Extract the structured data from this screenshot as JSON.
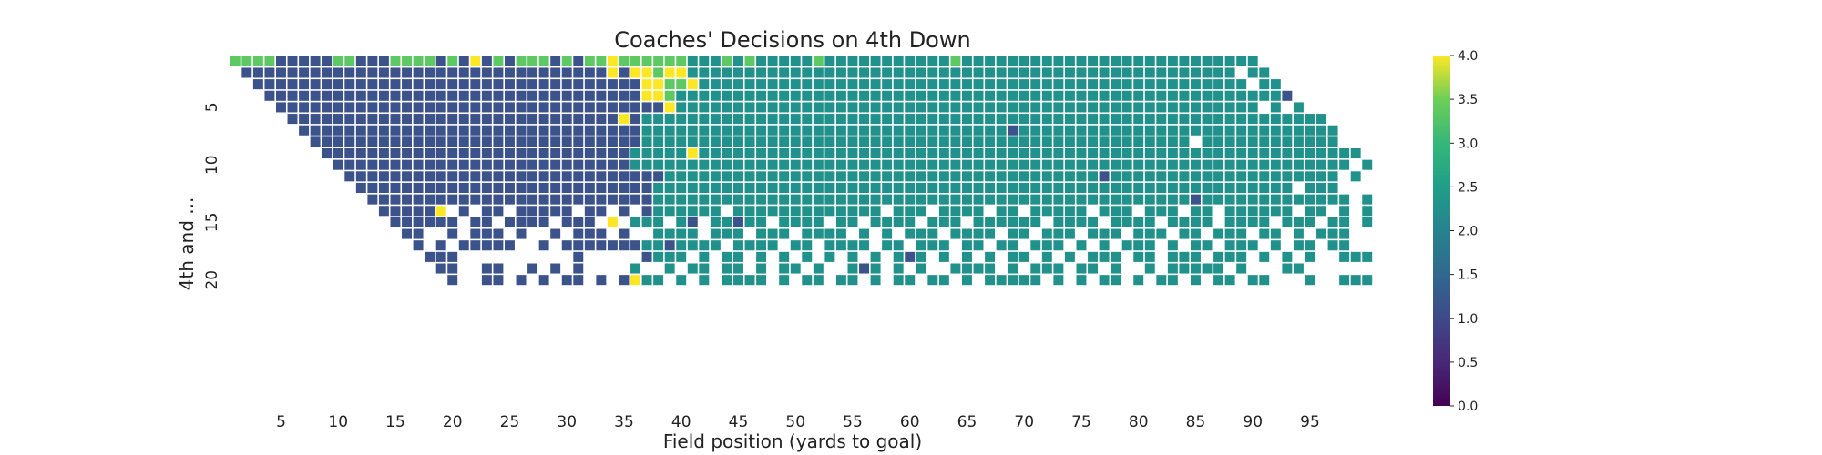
{
  "chart_data": {
    "type": "heatmap",
    "title": "Coaches' Decisions on 4th Down",
    "xlabel": "Field position (yards to goal)",
    "ylabel": "4th and ...",
    "x_range": [
      1,
      99
    ],
    "y_range": [
      1,
      20
    ],
    "x_ticks": [
      5,
      10,
      15,
      20,
      25,
      30,
      35,
      40,
      45,
      50,
      55,
      60,
      65,
      70,
      75,
      80,
      85,
      90,
      95
    ],
    "y_ticks": [
      5,
      10,
      15,
      20
    ],
    "colormap": "viridis",
    "colorbar": {
      "range": [
        0.0,
        4.0
      ],
      "ticks": [
        "0.0",
        "0.5",
        "1.0",
        "1.5",
        "2.0",
        "2.5",
        "3.0",
        "3.5",
        "4.0"
      ]
    },
    "value_colors": {
      "0": "#440154",
      "1": "#3b528b",
      "2": "#21918c",
      "3": "#5ec962",
      "4": "#fde725"
    },
    "rows": [
      {
        "yards": 1,
        "ranges": [
          [
            1,
            4,
            3
          ],
          [
            5,
            9,
            1
          ],
          [
            10,
            11,
            3
          ],
          [
            12,
            14,
            1
          ],
          [
            15,
            18,
            3
          ],
          [
            19,
            19,
            1
          ],
          [
            20,
            20,
            3
          ],
          [
            21,
            21,
            1
          ],
          [
            22,
            22,
            4
          ],
          [
            23,
            23,
            1
          ],
          [
            24,
            24,
            3
          ],
          [
            25,
            25,
            1
          ],
          [
            26,
            28,
            3
          ],
          [
            29,
            29,
            1
          ],
          [
            30,
            30,
            3
          ],
          [
            31,
            31,
            1
          ],
          [
            32,
            33,
            3
          ],
          [
            34,
            34,
            4
          ],
          [
            35,
            40,
            3
          ],
          [
            41,
            43,
            2
          ],
          [
            44,
            44,
            3
          ],
          [
            45,
            45,
            2
          ],
          [
            46,
            46,
            3
          ],
          [
            47,
            51,
            2
          ],
          [
            52,
            52,
            3
          ],
          [
            53,
            63,
            2
          ],
          [
            64,
            64,
            3
          ],
          [
            65,
            90,
            2
          ]
        ]
      },
      {
        "yards": 2,
        "ranges": [
          [
            2,
            33,
            1
          ],
          [
            34,
            34,
            4
          ],
          [
            35,
            35,
            1
          ],
          [
            36,
            37,
            4
          ],
          [
            38,
            38,
            3
          ],
          [
            39,
            40,
            4
          ],
          [
            41,
            88,
            2
          ],
          [
            90,
            91,
            2
          ]
        ]
      },
      {
        "yards": 3,
        "ranges": [
          [
            3,
            36,
            1
          ],
          [
            37,
            38,
            4
          ],
          [
            39,
            40,
            3
          ],
          [
            41,
            41,
            4
          ],
          [
            42,
            89,
            2
          ],
          [
            91,
            92,
            2
          ]
        ]
      },
      {
        "yards": 4,
        "ranges": [
          [
            4,
            36,
            1
          ],
          [
            37,
            38,
            4
          ],
          [
            39,
            39,
            3
          ],
          [
            40,
            92,
            2
          ],
          [
            93,
            93,
            1
          ]
        ]
      },
      {
        "yards": 5,
        "ranges": [
          [
            5,
            38,
            1
          ],
          [
            39,
            39,
            4
          ],
          [
            40,
            90,
            2
          ],
          [
            92,
            92,
            2
          ],
          [
            94,
            94,
            2
          ]
        ]
      },
      {
        "yards": 6,
        "ranges": [
          [
            6,
            34,
            1
          ],
          [
            35,
            35,
            4
          ],
          [
            36,
            36,
            1
          ],
          [
            37,
            96,
            2
          ]
        ]
      },
      {
        "yards": 7,
        "ranges": [
          [
            7,
            36,
            1
          ],
          [
            37,
            68,
            2
          ],
          [
            69,
            69,
            1
          ],
          [
            70,
            97,
            2
          ]
        ]
      },
      {
        "yards": 8,
        "ranges": [
          [
            8,
            36,
            1
          ],
          [
            37,
            84,
            2
          ],
          [
            86,
            97,
            2
          ]
        ]
      },
      {
        "yards": 9,
        "ranges": [
          [
            9,
            35,
            1
          ],
          [
            36,
            40,
            2
          ],
          [
            41,
            41,
            4
          ],
          [
            42,
            99,
            2
          ]
        ]
      },
      {
        "yards": 10,
        "ranges": [
          [
            10,
            35,
            1
          ],
          [
            36,
            98,
            2
          ],
          [
            100,
            100,
            2
          ]
        ]
      },
      {
        "yards": 11,
        "ranges": [
          [
            11,
            38,
            1
          ],
          [
            39,
            76,
            2
          ],
          [
            77,
            77,
            1
          ],
          [
            78,
            97,
            2
          ],
          [
            99,
            99,
            2
          ]
        ]
      },
      {
        "yards": 12,
        "ranges": [
          [
            12,
            37,
            1
          ],
          [
            38,
            93,
            2
          ],
          [
            95,
            97,
            2
          ]
        ]
      },
      {
        "yards": 13,
        "ranges": [
          [
            13,
            37,
            1
          ],
          [
            38,
            84,
            2
          ],
          [
            85,
            85,
            1
          ],
          [
            86,
            98,
            2
          ],
          [
            100,
            100,
            2
          ]
        ]
      },
      {
        "yards": 14,
        "ranges": [
          [
            14,
            18,
            1
          ],
          [
            19,
            19,
            4
          ],
          [
            20,
            37,
            1
          ],
          [
            38,
            96,
            2
          ],
          [
            97,
            97,
            1
          ],
          [
            98,
            98,
            2
          ],
          [
            99,
            99,
            1
          ],
          [
            100,
            100,
            2
          ]
        ]
      },
      {
        "yards": 15,
        "ranges": [
          [
            15,
            33,
            1
          ],
          [
            34,
            34,
            4
          ],
          [
            35,
            40,
            2
          ],
          [
            41,
            41,
            1
          ],
          [
            42,
            44,
            2
          ],
          [
            45,
            45,
            1
          ],
          [
            46,
            100,
            2
          ]
        ]
      },
      {
        "yards": 16,
        "ranges": [
          [
            16,
            35,
            1
          ],
          [
            36,
            98,
            2
          ]
        ]
      },
      {
        "yards": 17,
        "ranges": [
          [
            17,
            36,
            1
          ],
          [
            37,
            38,
            2
          ],
          [
            39,
            39,
            1
          ],
          [
            40,
            98,
            2
          ]
        ]
      },
      {
        "yards": 18,
        "ranges": [
          [
            18,
            37,
            1
          ],
          [
            38,
            59,
            2
          ],
          [
            60,
            60,
            1
          ],
          [
            61,
            100,
            2
          ]
        ]
      },
      {
        "yards": 19,
        "ranges": [
          [
            19,
            31,
            1
          ],
          [
            36,
            55,
            2
          ],
          [
            56,
            56,
            1
          ],
          [
            57,
            94,
            2
          ]
        ]
      },
      {
        "yards": 20,
        "ranges": [
          [
            20,
            35,
            1
          ],
          [
            36,
            36,
            4
          ],
          [
            37,
            100,
            2
          ]
        ]
      }
    ],
    "missing": [
      [
        2,
        89
      ],
      [
        3,
        90
      ],
      [
        5,
        91
      ],
      [
        5,
        93
      ],
      [
        8,
        85
      ],
      [
        10,
        99
      ],
      [
        11,
        98
      ],
      [
        12,
        94
      ],
      [
        13,
        99
      ],
      [
        14,
        20
      ],
      [
        14,
        22
      ],
      [
        14,
        25
      ],
      [
        14,
        31
      ],
      [
        14,
        34
      ],
      [
        14,
        36
      ],
      [
        14,
        44
      ],
      [
        14,
        58
      ],
      [
        14,
        62
      ],
      [
        14,
        67
      ],
      [
        14,
        70
      ],
      [
        14,
        76
      ],
      [
        14,
        80
      ],
      [
        14,
        84
      ],
      [
        14,
        87
      ],
      [
        14,
        94
      ],
      [
        14,
        97
      ],
      [
        14,
        99
      ],
      [
        15,
        21
      ],
      [
        15,
        24
      ],
      [
        15,
        29
      ],
      [
        15,
        33
      ],
      [
        15,
        35
      ],
      [
        15,
        39
      ],
      [
        15,
        42
      ],
      [
        15,
        48
      ],
      [
        15,
        53
      ],
      [
        15,
        56
      ],
      [
        15,
        61
      ],
      [
        15,
        65
      ],
      [
        15,
        72
      ],
      [
        15,
        77
      ],
      [
        15,
        82
      ],
      [
        15,
        87
      ],
      [
        15,
        92
      ],
      [
        15,
        96
      ],
      [
        15,
        99
      ],
      [
        16,
        18
      ],
      [
        16,
        19
      ],
      [
        16,
        21
      ],
      [
        16,
        25
      ],
      [
        16,
        27
      ],
      [
        16,
        28
      ],
      [
        16,
        30
      ],
      [
        16,
        34
      ],
      [
        16,
        36
      ],
      [
        16,
        37
      ],
      [
        16,
        42
      ],
      [
        16,
        46
      ],
      [
        16,
        50
      ],
      [
        16,
        55
      ],
      [
        16,
        57
      ],
      [
        16,
        59
      ],
      [
        16,
        63
      ],
      [
        16,
        68
      ],
      [
        16,
        71
      ],
      [
        16,
        75
      ],
      [
        16,
        79
      ],
      [
        16,
        83
      ],
      [
        16,
        86
      ],
      [
        16,
        90
      ],
      [
        16,
        93
      ],
      [
        16,
        95
      ],
      [
        17,
        18
      ],
      [
        17,
        20
      ],
      [
        17,
        26
      ],
      [
        17,
        27
      ],
      [
        17,
        29
      ],
      [
        17,
        44
      ],
      [
        17,
        49
      ],
      [
        17,
        52
      ],
      [
        17,
        57
      ],
      [
        17,
        60
      ],
      [
        17,
        64
      ],
      [
        17,
        67
      ],
      [
        17,
        70
      ],
      [
        17,
        74
      ],
      [
        17,
        76
      ],
      [
        17,
        78
      ],
      [
        17,
        82
      ],
      [
        17,
        84
      ],
      [
        17,
        87
      ],
      [
        17,
        91
      ],
      [
        17,
        93
      ],
      [
        17,
        96
      ],
      [
        18,
        21
      ],
      [
        18,
        22
      ],
      [
        18,
        23
      ],
      [
        18,
        24
      ],
      [
        18,
        25
      ],
      [
        18,
        26
      ],
      [
        18,
        27
      ],
      [
        18,
        28
      ],
      [
        18,
        29
      ],
      [
        18,
        30
      ],
      [
        18,
        32
      ],
      [
        18,
        33
      ],
      [
        18,
        34
      ],
      [
        18,
        35
      ],
      [
        18,
        36
      ],
      [
        18,
        41
      ],
      [
        18,
        43
      ],
      [
        18,
        46
      ],
      [
        18,
        48
      ],
      [
        18,
        50
      ],
      [
        18,
        52
      ],
      [
        18,
        54
      ],
      [
        18,
        56
      ],
      [
        18,
        58
      ],
      [
        18,
        62
      ],
      [
        18,
        64
      ],
      [
        18,
        66
      ],
      [
        18,
        68
      ],
      [
        18,
        71
      ],
      [
        18,
        73
      ],
      [
        18,
        75
      ],
      [
        18,
        79
      ],
      [
        18,
        82
      ],
      [
        18,
        86
      ],
      [
        18,
        90
      ],
      [
        18,
        92
      ],
      [
        18,
        94
      ],
      [
        18,
        96
      ],
      [
        18,
        97
      ],
      [
        19,
        21
      ],
      [
        19,
        22
      ],
      [
        19,
        25
      ],
      [
        19,
        26
      ],
      [
        19,
        28
      ],
      [
        19,
        30
      ],
      [
        19,
        37
      ],
      [
        19,
        38
      ],
      [
        19,
        40
      ],
      [
        19,
        43
      ],
      [
        19,
        46
      ],
      [
        19,
        48
      ],
      [
        19,
        51
      ],
      [
        19,
        53
      ],
      [
        19,
        54
      ],
      [
        19,
        58
      ],
      [
        19,
        60
      ],
      [
        19,
        62
      ],
      [
        19,
        63
      ],
      [
        19,
        68
      ],
      [
        19,
        70
      ],
      [
        19,
        74
      ],
      [
        19,
        77
      ],
      [
        19,
        79
      ],
      [
        19,
        80
      ],
      [
        19,
        82
      ],
      [
        19,
        88
      ],
      [
        19,
        90
      ],
      [
        19,
        91
      ],
      [
        19,
        92
      ],
      [
        20,
        21
      ],
      [
        20,
        22
      ],
      [
        20,
        25
      ],
      [
        20,
        27
      ],
      [
        20,
        29
      ],
      [
        20,
        32
      ],
      [
        20,
        34
      ],
      [
        20,
        39
      ],
      [
        20,
        41
      ],
      [
        20,
        43
      ],
      [
        20,
        48
      ],
      [
        20,
        50
      ],
      [
        20,
        53
      ],
      [
        20,
        56
      ],
      [
        20,
        58
      ],
      [
        20,
        61
      ],
      [
        20,
        64
      ],
      [
        20,
        66
      ],
      [
        20,
        72
      ],
      [
        20,
        74
      ],
      [
        20,
        76
      ],
      [
        20,
        79
      ],
      [
        20,
        81
      ],
      [
        20,
        84
      ],
      [
        20,
        86
      ],
      [
        20,
        89
      ],
      [
        20,
        92
      ],
      [
        20,
        93
      ],
      [
        20,
        94
      ],
      [
        20,
        96
      ],
      [
        20,
        97
      ]
    ]
  }
}
